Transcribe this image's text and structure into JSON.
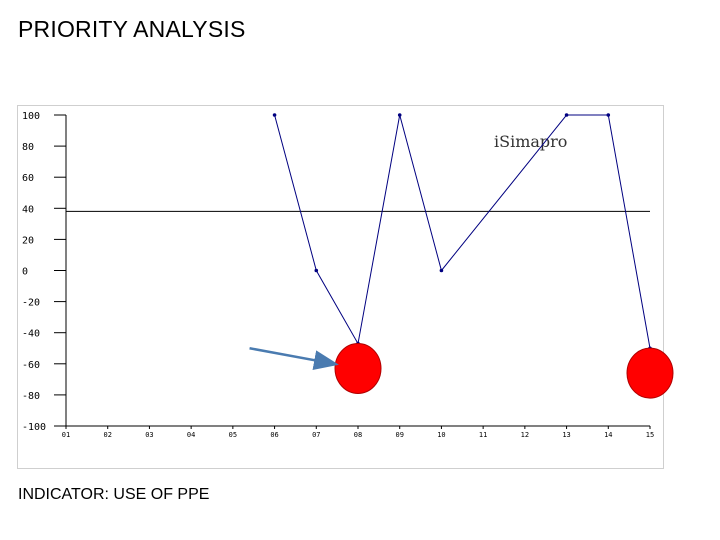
{
  "slide": {
    "title": "PRIORITY ANALYSIS",
    "indicator": "INDICATOR: USE OF PPE"
  },
  "chart_data": {
    "type": "line",
    "title": "",
    "xlabel": "",
    "ylabel": "",
    "watermark": "iSimapro",
    "categories": [
      "01",
      "02",
      "03",
      "04",
      "05",
      "06",
      "07",
      "08",
      "09",
      "10",
      "11",
      "12",
      "13",
      "14",
      "15"
    ],
    "y_ticks": [
      "100",
      "80",
      "60",
      "40",
      "20",
      "0",
      "-20",
      "-40",
      "-60",
      "-80",
      "-100"
    ],
    "ylim": [
      -100,
      100
    ],
    "series": [
      {
        "color": "#000080",
        "points": [
          {
            "x": "06",
            "y": 100
          },
          {
            "x": "07",
            "y": 0
          },
          {
            "x": "08",
            "y": -47
          },
          {
            "x": "09",
            "y": 100
          },
          {
            "x": "10",
            "y": 0
          },
          {
            "x": "13",
            "y": 100
          },
          {
            "x": "14",
            "y": 100
          },
          {
            "x": "15",
            "y": -50
          }
        ]
      }
    ],
    "threshold": {
      "y": 38,
      "color": "#000000"
    },
    "highlights": [
      {
        "x": "08",
        "y": -63,
        "color": "#ff0000"
      },
      {
        "x": "15",
        "y": -66,
        "color": "#ff0000"
      }
    ],
    "arrow": {
      "from": {
        "x": "05.4",
        "y": -50
      },
      "to": {
        "x": "08",
        "y": -60
      },
      "color": "#4a7bb0"
    },
    "grid": false
  }
}
